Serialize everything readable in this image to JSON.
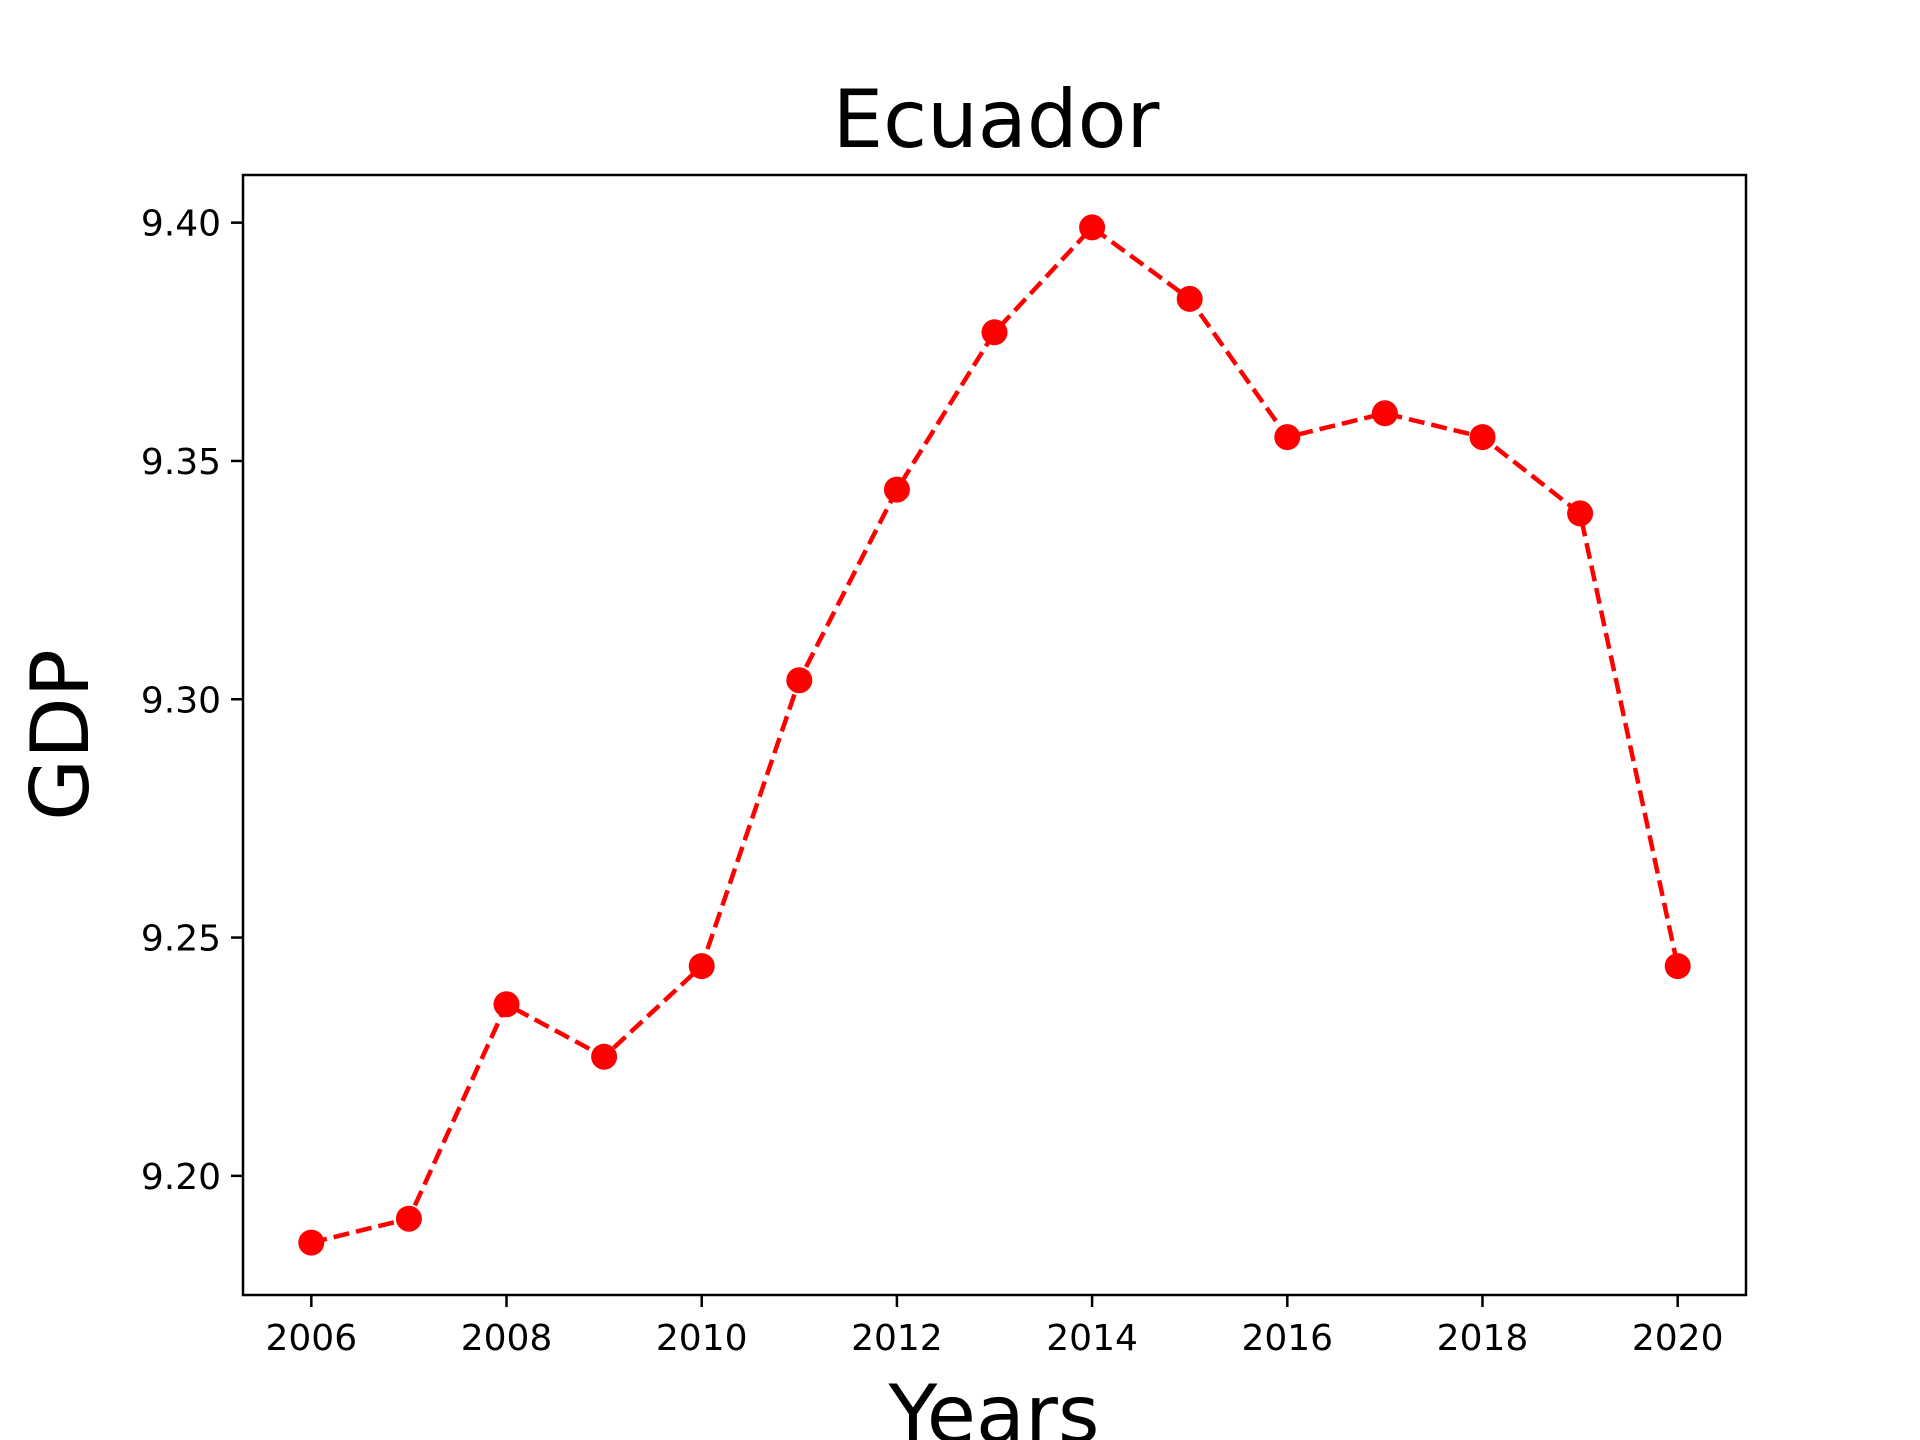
{
  "chart_data": {
    "type": "line",
    "title": "Ecuador",
    "xlabel": "Years",
    "ylabel": "GDP",
    "x": [
      2006,
      2007,
      2008,
      2009,
      2010,
      2011,
      2012,
      2013,
      2014,
      2015,
      2016,
      2017,
      2018,
      2019,
      2020
    ],
    "series": [
      {
        "values": [
          9.186,
          9.191,
          9.236,
          9.225,
          9.244,
          9.304,
          9.344,
          9.377,
          9.399,
          9.384,
          9.355,
          9.36,
          9.355,
          9.339,
          9.244
        ]
      }
    ],
    "xticks": [
      "2006",
      "2008",
      "2010",
      "2012",
      "2014",
      "2016",
      "2018",
      "2020"
    ],
    "yticks": [
      "9.20",
      "9.25",
      "9.30",
      "9.35",
      "9.40"
    ],
    "xlim": [
      2005.3,
      2020.7
    ],
    "ylim": [
      9.175,
      9.41
    ],
    "line_style": "dashed",
    "marker": "circle",
    "color": "#ff0000",
    "grid": false,
    "legend": "none"
  }
}
